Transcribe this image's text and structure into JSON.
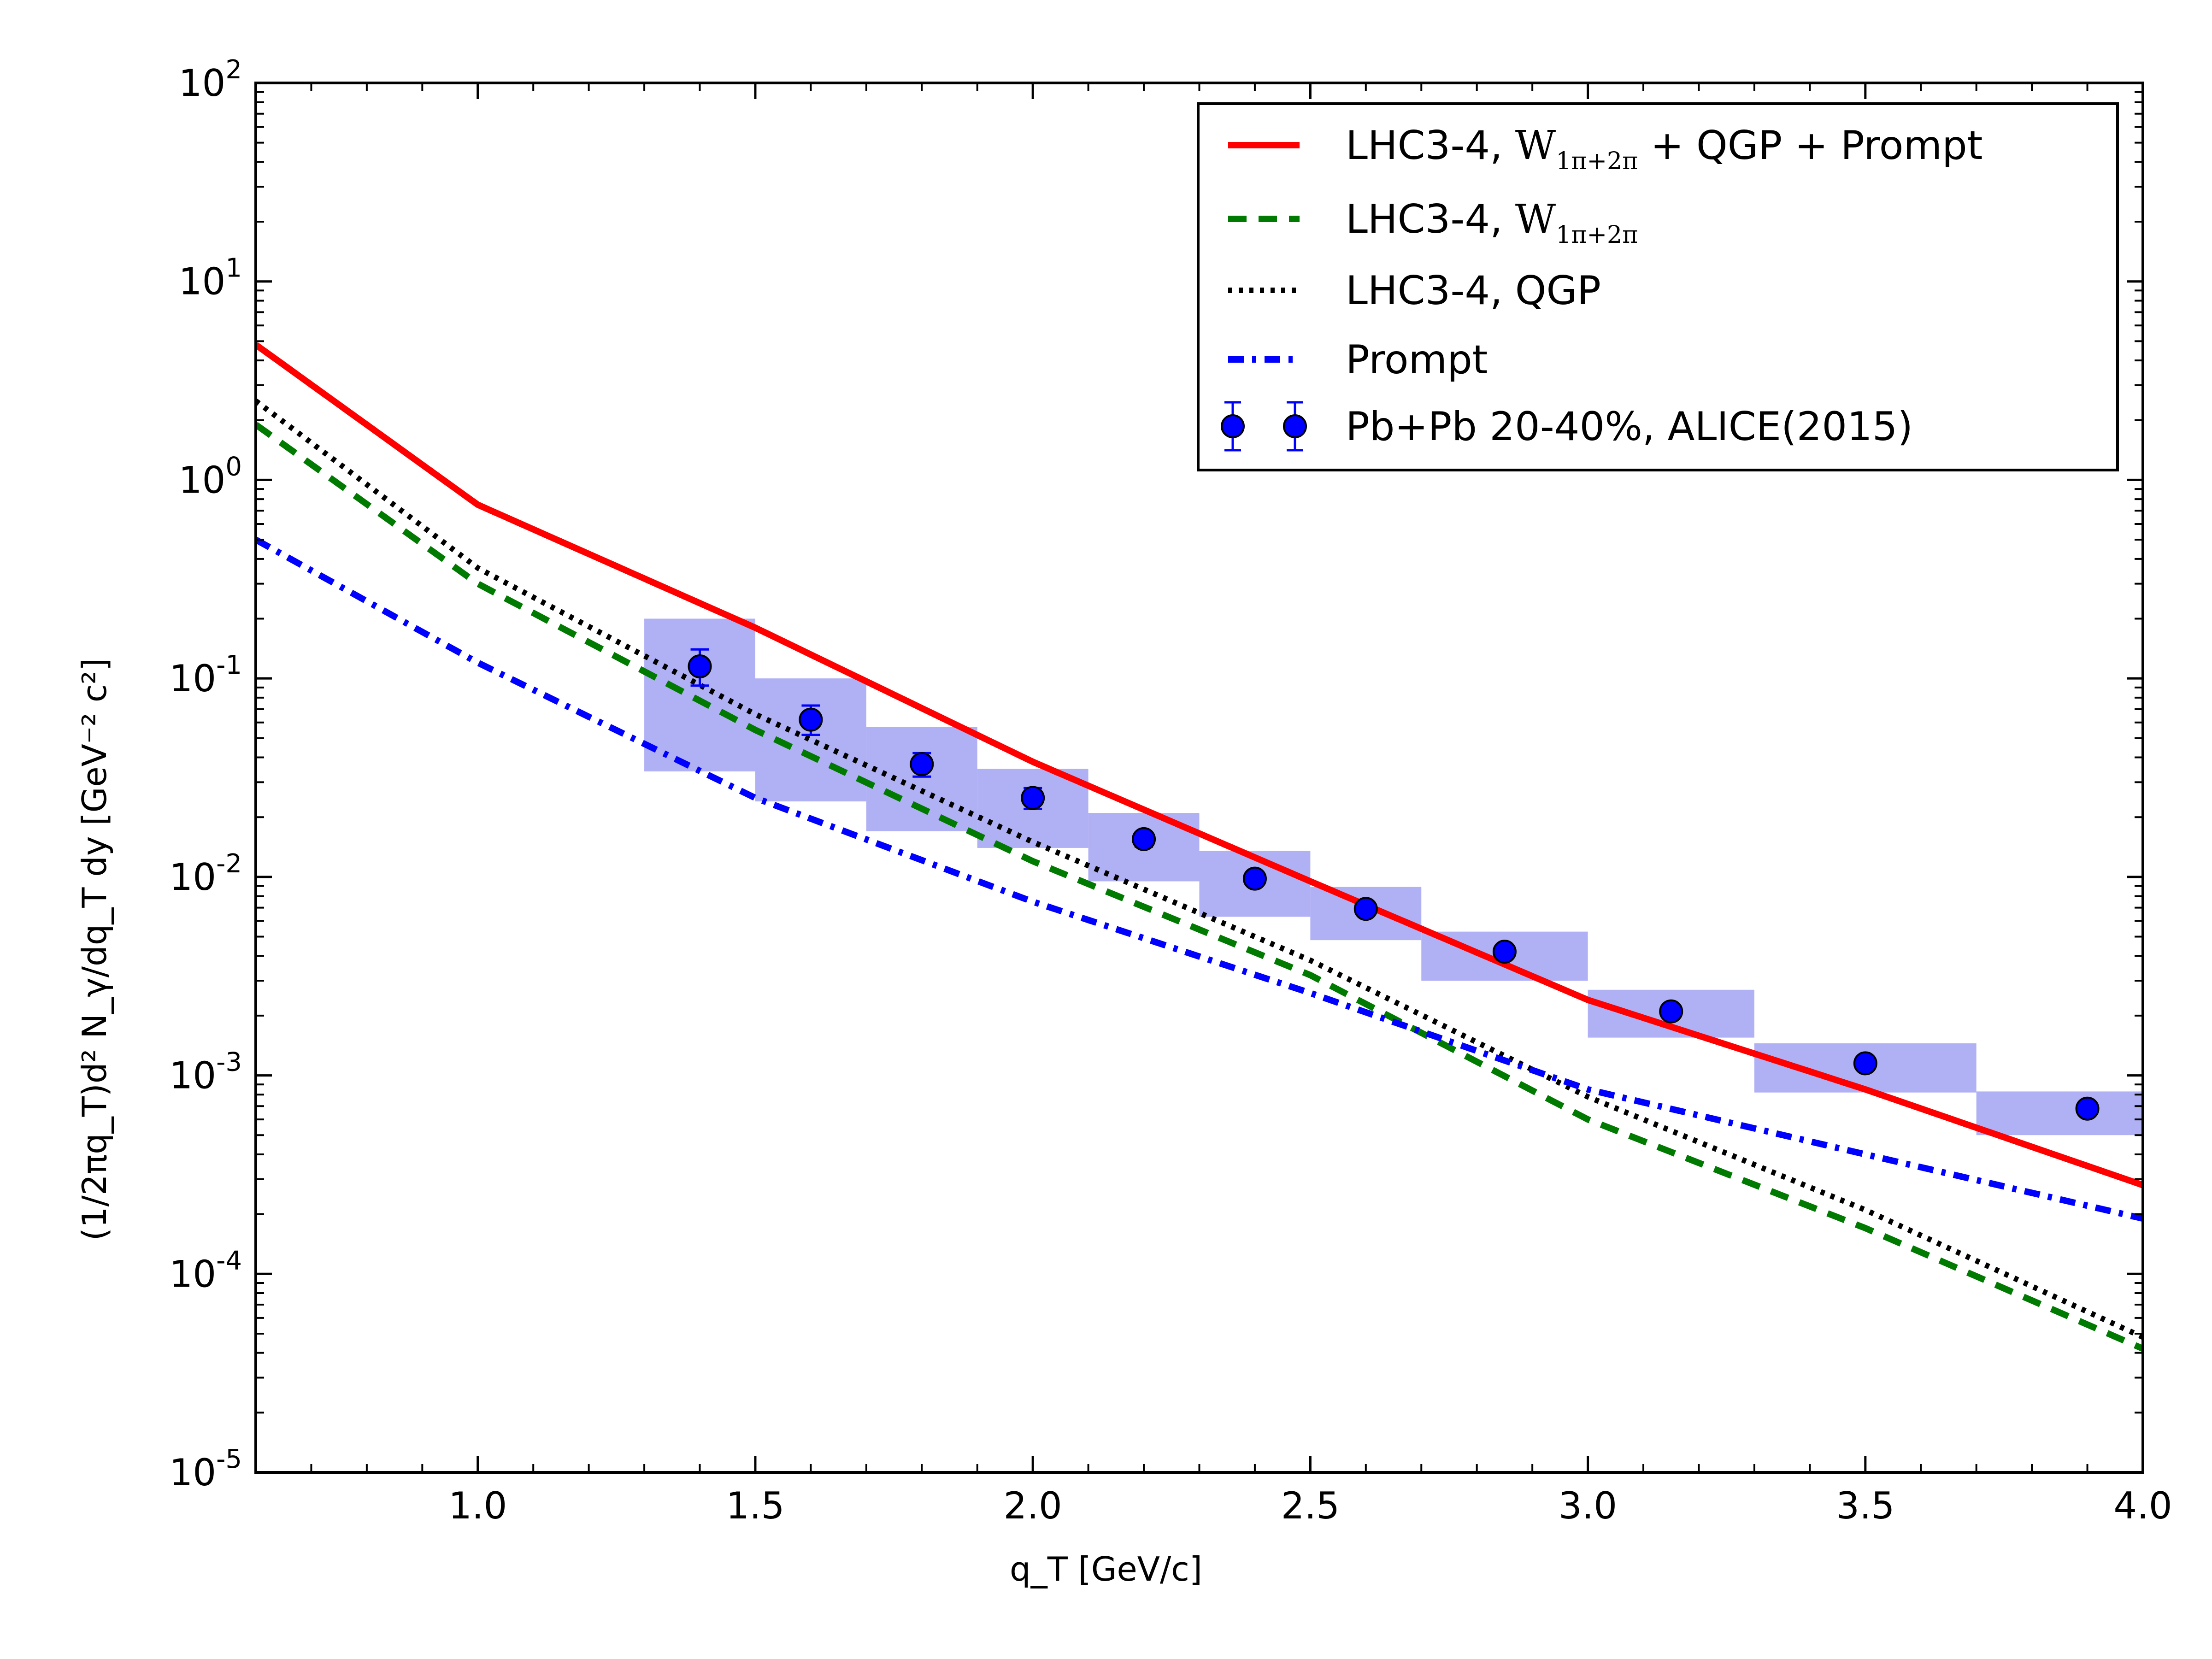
{
  "chart_data": {
    "type": "line",
    "title": "",
    "xlabel": "q_T [GeV/c]",
    "ylabel": "(1/2πq_T)d² N_γ/dq_T dy [GeV⁻² c²]",
    "xlim": [
      0.6,
      4.0
    ],
    "ylim_log10": [
      -5,
      2
    ],
    "y_scale": "log",
    "grid": false,
    "legend_position": "top-right",
    "x_ticks": [
      "1.0",
      "1.5",
      "2.0",
      "2.5",
      "3.0",
      "3.5",
      "4.0"
    ],
    "x_tick_values": [
      1.0,
      1.5,
      2.0,
      2.5,
      3.0,
      3.5,
      4.0
    ],
    "y_ticks": [
      {
        "base": "10",
        "exp": "2",
        "value": 2
      },
      {
        "base": "10",
        "exp": "1",
        "value": 1
      },
      {
        "base": "10",
        "exp": "0",
        "value": 0
      },
      {
        "base": "10",
        "exp": "-1",
        "value": -1
      },
      {
        "base": "10",
        "exp": "-2",
        "value": -2
      },
      {
        "base": "10",
        "exp": "-3",
        "value": -3
      },
      {
        "base": "10",
        "exp": "-4",
        "value": -4
      },
      {
        "base": "10",
        "exp": "-5",
        "value": -5
      }
    ],
    "series": [
      {
        "name": "LHC3-4, W_{1π+2π} + QGP + Prompt",
        "legend_prefix": "LHC3-4, ",
        "legend_math": "W",
        "legend_sub": "1π+2π",
        "legend_suffix": " + QGP + Prompt",
        "color": "#ff0000",
        "style": "solid",
        "x": [
          0.6,
          1.0,
          1.5,
          2.0,
          2.5,
          3.0,
          3.5,
          4.0
        ],
        "y": [
          4.8,
          0.75,
          0.18,
          0.038,
          0.0095,
          0.0024,
          0.00085,
          0.00028
        ]
      },
      {
        "name": "LHC3-4, W_{1π+2π}",
        "legend_prefix": "LHC3-4, ",
        "legend_math": "W",
        "legend_sub": "1π+2π",
        "legend_suffix": "",
        "color": "#007a00",
        "style": "dashed",
        "x": [
          0.6,
          1.0,
          1.5,
          2.0,
          2.5,
          3.0,
          3.5,
          4.0
        ],
        "y": [
          1.9,
          0.3,
          0.055,
          0.012,
          0.0032,
          0.0006,
          0.00017,
          4.2e-05
        ]
      },
      {
        "name": "LHC3-4, QGP",
        "legend_prefix": "LHC3-4, QGP",
        "legend_math": "",
        "legend_sub": "",
        "legend_suffix": "",
        "color": "#000000",
        "style": "dotted",
        "x": [
          0.6,
          1.0,
          1.5,
          2.0,
          2.5,
          3.0,
          3.5,
          4.0
        ],
        "y": [
          2.5,
          0.36,
          0.066,
          0.015,
          0.0038,
          0.00078,
          0.00021,
          4.8e-05
        ]
      },
      {
        "name": "Prompt",
        "legend_prefix": "Prompt",
        "legend_math": "",
        "legend_sub": "",
        "legend_suffix": "",
        "color": "#0000ff",
        "style": "dashdot",
        "x": [
          0.6,
          1.0,
          1.5,
          2.0,
          2.5,
          3.0,
          3.5,
          4.0
        ],
        "y": [
          0.5,
          0.12,
          0.025,
          0.0075,
          0.0026,
          0.00085,
          0.0004,
          0.00019
        ]
      }
    ],
    "data_points": {
      "name": "Pb+Pb 20-40%, ALICE(2015)",
      "color": "#0000ff",
      "box_color": "#b0b0f5",
      "points": [
        {
          "x": 1.4,
          "y": 0.115,
          "err_lo": 0.092,
          "err_hi": 0.14,
          "x_lo": 1.3,
          "x_hi": 1.5,
          "sys_lo": 0.034,
          "sys_hi": 0.2
        },
        {
          "x": 1.6,
          "y": 0.062,
          "err_lo": 0.052,
          "err_hi": 0.073,
          "x_lo": 1.5,
          "x_hi": 1.7,
          "sys_lo": 0.024,
          "sys_hi": 0.1
        },
        {
          "x": 1.8,
          "y": 0.037,
          "err_lo": 0.032,
          "err_hi": 0.042,
          "x_lo": 1.7,
          "x_hi": 1.9,
          "sys_lo": 0.017,
          "sys_hi": 0.057
        },
        {
          "x": 2.0,
          "y": 0.025,
          "err_lo": 0.022,
          "err_hi": 0.028,
          "x_lo": 1.9,
          "x_hi": 2.1,
          "sys_lo": 0.014,
          "sys_hi": 0.035
        },
        {
          "x": 2.2,
          "y": 0.0155,
          "err_lo": 0.0142,
          "err_hi": 0.0168,
          "x_lo": 2.1,
          "x_hi": 2.3,
          "sys_lo": 0.0095,
          "sys_hi": 0.021
        },
        {
          "x": 2.4,
          "y": 0.0098,
          "err_lo": 0.0091,
          "err_hi": 0.0105,
          "x_lo": 2.3,
          "x_hi": 2.5,
          "sys_lo": 0.0063,
          "sys_hi": 0.0135
        },
        {
          "x": 2.6,
          "y": 0.0069,
          "err_lo": 0.0065,
          "err_hi": 0.0073,
          "x_lo": 2.5,
          "x_hi": 2.7,
          "sys_lo": 0.0048,
          "sys_hi": 0.0089
        },
        {
          "x": 2.85,
          "y": 0.0042,
          "err_lo": 0.004,
          "err_hi": 0.0044,
          "x_lo": 2.7,
          "x_hi": 3.0,
          "sys_lo": 0.003,
          "sys_hi": 0.0053
        },
        {
          "x": 3.15,
          "y": 0.0021,
          "err_lo": 0.002,
          "err_hi": 0.0022,
          "x_lo": 3.0,
          "x_hi": 3.3,
          "sys_lo": 0.00155,
          "sys_hi": 0.0027
        },
        {
          "x": 3.5,
          "y": 0.00115,
          "err_lo": 0.0011,
          "err_hi": 0.0012,
          "x_lo": 3.3,
          "x_hi": 3.7,
          "sys_lo": 0.00082,
          "sys_hi": 0.00145
        },
        {
          "x": 3.9,
          "y": 0.00068,
          "err_lo": 0.00065,
          "err_hi": 0.00071,
          "x_lo": 3.7,
          "x_hi": 4.0,
          "sys_lo": 0.0005,
          "sys_hi": 0.00083
        }
      ]
    }
  }
}
